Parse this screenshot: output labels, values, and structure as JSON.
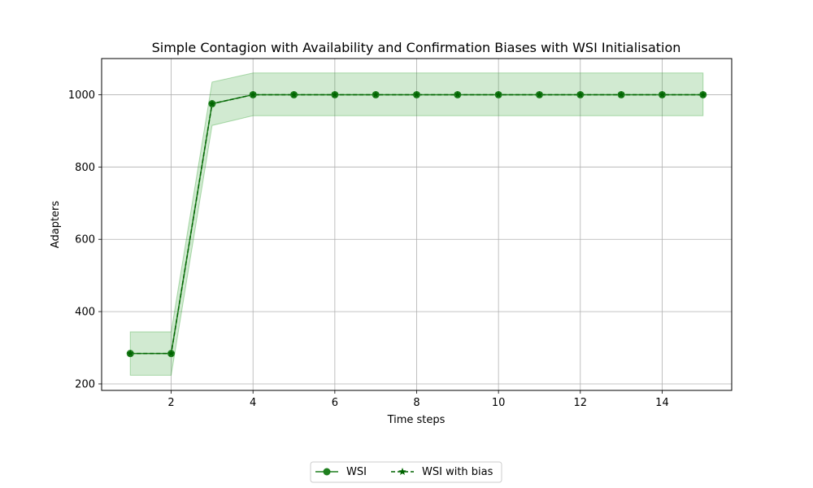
{
  "chart_data": {
    "type": "line",
    "title": "Simple Contagion with Availability and Confirmation Biases with WSI Initialisation",
    "xlabel": "Time steps",
    "ylabel": "Adapters",
    "xlim": [
      0.3,
      15.7
    ],
    "ylim": [
      182,
      1100
    ],
    "xticks": [
      2,
      4,
      6,
      8,
      10,
      12,
      14
    ],
    "yticks": [
      200,
      400,
      600,
      800,
      1000
    ],
    "grid": true,
    "legend_position": "bottom-center",
    "x": [
      1,
      2,
      3,
      4,
      5,
      6,
      7,
      8,
      9,
      10,
      11,
      12,
      13,
      14,
      15
    ],
    "band": {
      "lower": [
        224,
        224,
        915,
        942,
        942,
        942,
        942,
        942,
        942,
        942,
        942,
        942,
        942,
        942,
        942
      ],
      "upper": [
        344,
        344,
        1035,
        1060,
        1060,
        1060,
        1060,
        1060,
        1060,
        1060,
        1060,
        1060,
        1060,
        1060,
        1060
      ],
      "color": "#2ca02c"
    },
    "series": [
      {
        "name": "WSI",
        "values": [
          284,
          284,
          975,
          1000,
          1000,
          1000,
          1000,
          1000,
          1000,
          1000,
          1000,
          1000,
          1000,
          1000,
          1000
        ],
        "color": "#1f7f1f",
        "style": "solid",
        "marker": "circle"
      },
      {
        "name": "WSI with bias",
        "values": [
          284,
          284,
          975,
          1000,
          1000,
          1000,
          1000,
          1000,
          1000,
          1000,
          1000,
          1000,
          1000,
          1000,
          1000
        ],
        "color": "#006400",
        "style": "dashed",
        "marker": "star"
      }
    ]
  }
}
